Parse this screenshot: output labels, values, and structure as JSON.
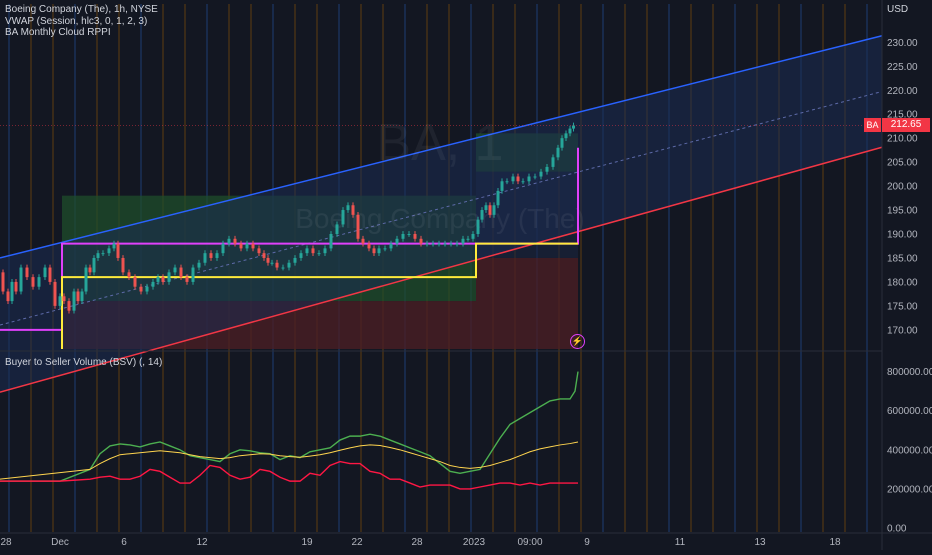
{
  "header": {
    "symbol_line": "Boeing Company (The), 1h, NYSE",
    "vwap_line": "VWAP (Session, hlc3, 0, 1, 2, 3)",
    "cloud_line": "BA Monthly Cloud RPPI",
    "indicator_line": "Buyer to Seller Volume (BSV) (, 14)",
    "currency": "USD",
    "symbol_tag": "BA",
    "last_price": "212.65",
    "watermark_symbol": "BA, 1",
    "watermark_name": "Boeing Company (The)"
  },
  "colors": {
    "background": "#131722",
    "upper_channel": "#2962ff",
    "lower_channel": "#f23645",
    "vwap_level": "#ffeb3b",
    "cloud_level": "#e040fb",
    "bsv_buyer": "#4caf50",
    "bsv_seller": "#ff1744",
    "bsv_avg": "#ffd54f"
  },
  "chart_data": [
    {
      "type": "line",
      "title": "Boeing Company (The), 1h, NYSE",
      "ylabel": "USD",
      "y_ticks": [
        170.0,
        175.0,
        180.0,
        185.0,
        190.0,
        195.0,
        200.0,
        205.0,
        210.0,
        215.0,
        220.0,
        225.0,
        230.0
      ],
      "ylim": [
        166.0,
        238.0
      ],
      "x_ticks": [
        "28",
        "Dec",
        "6",
        "12",
        "19",
        "22",
        "28",
        "2023",
        "09:00",
        "9",
        "11",
        "13",
        "18"
      ],
      "last_price": 212.65,
      "series": [
        {
          "name": "",
          "points": [
            [
              0,
              182
            ],
            [
              6,
              178
            ],
            [
              10,
              176
            ],
            [
              14,
              180
            ],
            [
              18,
              178
            ],
            [
              24,
              183
            ],
            [
              30,
              181
            ],
            [
              36,
              179
            ],
            [
              42,
              181
            ],
            [
              48,
              183
            ],
            [
              52,
              180
            ],
            [
              58,
              175
            ],
            [
              62,
              177
            ],
            [
              66,
              176
            ],
            [
              72,
              174
            ],
            [
              76,
              178
            ],
            [
              80,
              176
            ],
            [
              84,
              178
            ],
            [
              88,
              183
            ],
            [
              92,
              182
            ],
            [
              96,
              185
            ],
            [
              100,
              186
            ],
            [
              106,
              186
            ],
            [
              112,
              187
            ],
            [
              116,
              188
            ],
            [
              120,
              185
            ],
            [
              126,
              182
            ],
            [
              132,
              181
            ],
            [
              138,
              179
            ],
            [
              144,
              178
            ],
            [
              150,
              179
            ],
            [
              156,
              180
            ],
            [
              160,
              181
            ],
            [
              166,
              180
            ],
            [
              172,
              182
            ],
            [
              178,
              183
            ],
            [
              184,
              181
            ],
            [
              190,
              180
            ],
            [
              196,
              183
            ],
            [
              202,
              184
            ],
            [
              208,
              186
            ],
            [
              214,
              185
            ],
            [
              220,
              186
            ],
            [
              226,
              188
            ],
            [
              232,
              189
            ],
            [
              238,
              188
            ],
            [
              244,
              187
            ],
            [
              250,
              188
            ],
            [
              256,
              187
            ],
            [
              262,
              186
            ],
            [
              266,
              185
            ],
            [
              270,
              184
            ],
            [
              274,
              184
            ],
            [
              280,
              183
            ],
            [
              286,
              183
            ],
            [
              292,
              184
            ],
            [
              298,
              185
            ],
            [
              304,
              186
            ],
            [
              310,
              187
            ],
            [
              316,
              186
            ],
            [
              322,
              186
            ],
            [
              328,
              187
            ],
            [
              334,
              190
            ],
            [
              340,
              192
            ],
            [
              346,
              195
            ],
            [
              350,
              196
            ],
            [
              356,
              194
            ],
            [
              360,
              189
            ],
            [
              366,
              188
            ],
            [
              372,
              187
            ],
            [
              376,
              186
            ],
            [
              382,
              187
            ],
            [
              388,
              187
            ],
            [
              394,
              188
            ],
            [
              400,
              189
            ],
            [
              406,
              190
            ],
            [
              412,
              190
            ],
            [
              418,
              189
            ],
            [
              424,
              188
            ],
            [
              430,
              188
            ],
            [
              436,
              188
            ],
            [
              442,
              188
            ],
            [
              448,
              188
            ],
            [
              454,
              188
            ],
            [
              460,
              188
            ],
            [
              466,
              189
            ],
            [
              470,
              189
            ],
            [
              476,
              190
            ],
            [
              480,
              193
            ],
            [
              484,
              195
            ],
            [
              488,
              196
            ],
            [
              492,
              194
            ],
            [
              496,
              196
            ],
            [
              500,
              199
            ],
            [
              504,
              201
            ],
            [
              510,
              201
            ],
            [
              516,
              202
            ],
            [
              520,
              201
            ],
            [
              526,
              201
            ],
            [
              532,
              202
            ],
            [
              538,
              202
            ],
            [
              544,
              203
            ],
            [
              550,
              204
            ],
            [
              556,
              206
            ],
            [
              560,
              208
            ],
            [
              564,
              210
            ],
            [
              568,
              211
            ],
            [
              572,
              212
            ],
            [
              575,
              212.65
            ]
          ]
        },
        {
          "name": "",
          "values_note": "",
          "x": [
            0,
            62,
            476,
            578
          ],
          "y": [
            170,
            188,
            188,
            208
          ]
        },
        {
          "name": "",
          "x": [
            62,
            476,
            578
          ],
          "y": [
            181,
            181,
            188
          ]
        },
        {
          "name": "",
          "x": [
            0,
            932
          ],
          "y": [
            185,
            234
          ]
        },
        {
          "name": "",
          "x": [
            0,
            932
          ],
          "y": [
            157,
            211
          ]
        }
      ]
    },
    {
      "type": "line",
      "title": "Buyer to Seller Volume (BSV) (, 14)",
      "y_ticks": [
        0.0,
        200000.0,
        400000.0,
        600000.0,
        800000.0
      ],
      "ylim": [
        -20000,
        900000
      ],
      "series": [
        {
          "name": "",
          "x": [
            0,
            60,
            90,
            100,
            110,
            120,
            130,
            140,
            150,
            160,
            170,
            180,
            190,
            200,
            210,
            220,
            230,
            240,
            250,
            260,
            270,
            280,
            290,
            300,
            310,
            320,
            330,
            340,
            350,
            360,
            370,
            380,
            390,
            400,
            410,
            420,
            430,
            440,
            450,
            460,
            470,
            480,
            490,
            500,
            510,
            520,
            530,
            540,
            550,
            560,
            570,
            575,
            578
          ],
          "y": [
            240000,
            240000,
            300000,
            380000,
            420000,
            430000,
            425000,
            415000,
            430000,
            440000,
            420000,
            400000,
            370000,
            360000,
            350000,
            340000,
            380000,
            400000,
            395000,
            385000,
            380000,
            350000,
            370000,
            360000,
            390000,
            400000,
            410000,
            450000,
            470000,
            470000,
            480000,
            470000,
            450000,
            430000,
            410000,
            390000,
            370000,
            330000,
            290000,
            280000,
            290000,
            300000,
            380000,
            460000,
            530000,
            560000,
            590000,
            620000,
            650000,
            660000,
            660000,
            700000,
            800000
          ]
        },
        {
          "name": "",
          "x": [
            0,
            60,
            90,
            100,
            110,
            120,
            130,
            140,
            150,
            160,
            170,
            180,
            190,
            200,
            210,
            220,
            230,
            240,
            250,
            260,
            270,
            280,
            290,
            300,
            310,
            320,
            330,
            340,
            350,
            360,
            370,
            380,
            390,
            400,
            410,
            420,
            430,
            440,
            450,
            460,
            470,
            480,
            490,
            500,
            510,
            520,
            530,
            540,
            550,
            560,
            570,
            578
          ],
          "y": [
            240000,
            240000,
            250000,
            260000,
            265000,
            250000,
            250000,
            265000,
            300000,
            290000,
            260000,
            230000,
            230000,
            270000,
            320000,
            310000,
            270000,
            250000,
            260000,
            300000,
            290000,
            260000,
            240000,
            240000,
            280000,
            270000,
            320000,
            340000,
            330000,
            330000,
            290000,
            280000,
            250000,
            250000,
            230000,
            210000,
            220000,
            220000,
            220000,
            200000,
            200000,
            210000,
            220000,
            230000,
            230000,
            220000,
            230000,
            220000,
            230000,
            230000,
            230000,
            230000
          ]
        },
        {
          "name": "",
          "x": [
            0,
            90,
            100,
            110,
            120,
            130,
            140,
            150,
            160,
            170,
            180,
            190,
            200,
            210,
            220,
            230,
            240,
            250,
            260,
            270,
            280,
            290,
            300,
            310,
            320,
            330,
            340,
            350,
            360,
            370,
            380,
            390,
            400,
            410,
            420,
            430,
            440,
            450,
            460,
            470,
            480,
            490,
            500,
            510,
            520,
            530,
            540,
            550,
            560,
            570,
            578
          ],
          "y": [
            250000,
            300000,
            330000,
            355000,
            375000,
            380000,
            385000,
            390000,
            395000,
            390000,
            385000,
            375000,
            365000,
            360000,
            355000,
            360000,
            370000,
            375000,
            380000,
            378000,
            370000,
            365000,
            362000,
            368000,
            375000,
            385000,
            398000,
            410000,
            420000,
            425000,
            422000,
            412000,
            400000,
            385000,
            370000,
            355000,
            340000,
            320000,
            310000,
            305000,
            310000,
            320000,
            335000,
            350000,
            370000,
            390000,
            405000,
            415000,
            425000,
            432000,
            440000
          ]
        }
      ]
    }
  ]
}
